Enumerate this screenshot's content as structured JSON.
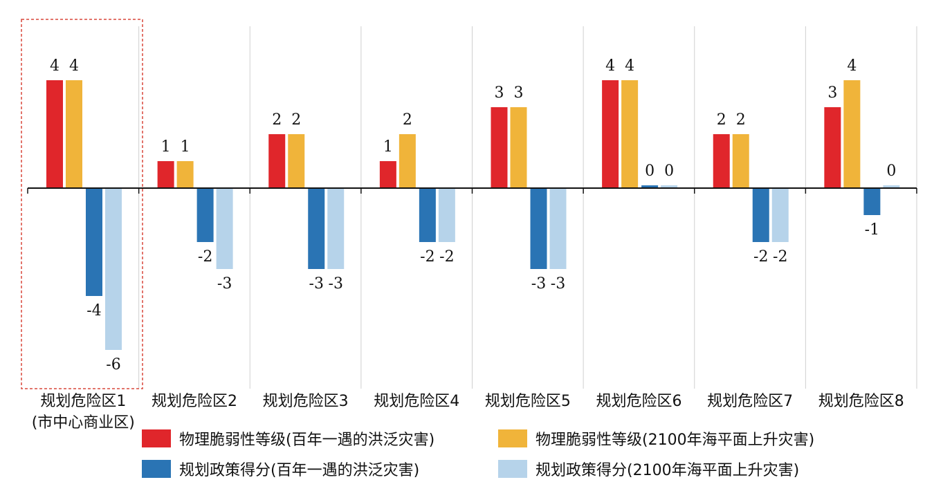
{
  "chart_data": {
    "type": "bar",
    "categories": [
      [
        "规划危险区1",
        "(市中心商业区)"
      ],
      [
        "规划危险区2"
      ],
      [
        "规划危险区3"
      ],
      [
        "规划危险区4"
      ],
      [
        "规划危险区5"
      ],
      [
        "规划危险区6"
      ],
      [
        "规划危险区7"
      ],
      [
        "规划危险区8"
      ]
    ],
    "series": [
      {
        "name": "物理脆弱性等级(百年一遇的洪泛灾害)",
        "color": "#e0262b",
        "values": [
          4,
          1,
          2,
          1,
          3,
          4,
          2,
          3
        ]
      },
      {
        "name": "物理脆弱性等级(2100年海平面上升灾害)",
        "color": "#f0b43a",
        "values": [
          4,
          1,
          2,
          2,
          3,
          4,
          2,
          4
        ]
      },
      {
        "name": "规划政策得分(百年一遇的洪泛灾害)",
        "color": "#2a74b4",
        "values": [
          -4,
          -2,
          -3,
          -2,
          -3,
          0,
          -2,
          -1
        ]
      },
      {
        "name": "规划政策得分(2100年海平面上升灾害)",
        "color": "#b6d3ea",
        "values": [
          -6,
          -3,
          -3,
          -2,
          -3,
          0,
          -2,
          0
        ]
      }
    ],
    "ylim": [
      -7,
      5
    ],
    "highlight_category": 0,
    "grid": "vertical separators between categories"
  }
}
